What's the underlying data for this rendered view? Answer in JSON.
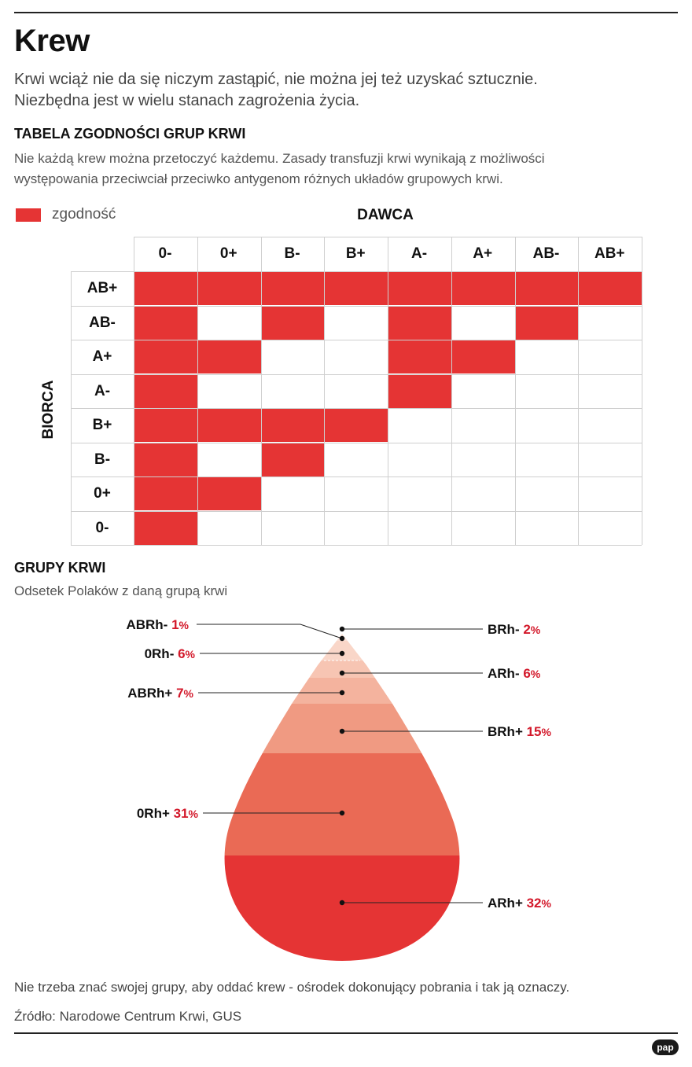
{
  "header": {
    "title": "Krew",
    "lead_lines": [
      "Krwi wciąż nie da się niczym zastąpić, nie można jej też uzyskać sztucznie.",
      "Niezbędna jest w wielu stanach zagrożenia życia."
    ]
  },
  "compat": {
    "heading": "TABELA ZGODNOŚCI GRUP KRWI",
    "desc_lines": [
      "Nie każdą krew można przetoczyć każdemu. Zasady transfuzji krwi wynikają z możliwości",
      "występowania przeciwciał przeciwko antygenom różnych układów grupowych krwi."
    ],
    "legend_label": "zgodność",
    "legend_color": "#e53434",
    "donor_axis": "DAWCA",
    "recipient_axis": "BIORCA"
  },
  "groups": {
    "heading": "GRUPY KRWI",
    "subheading": "Odsetek Polaków z daną grupą krwi"
  },
  "chart_data": [
    {
      "type": "heatmap",
      "title": "TABELA ZGODNOŚCI GRUP KRWI",
      "xlabel": "DAWCA",
      "ylabel": "BIORCA",
      "columns": [
        "0-",
        "0+",
        "B-",
        "B+",
        "A-",
        "A+",
        "AB-",
        "AB+"
      ],
      "rows": [
        "AB+",
        "AB-",
        "A+",
        "A-",
        "B+",
        "B-",
        "0+",
        "0-"
      ],
      "values": [
        [
          1,
          1,
          1,
          1,
          1,
          1,
          1,
          1
        ],
        [
          1,
          0,
          1,
          0,
          1,
          0,
          1,
          0
        ],
        [
          1,
          1,
          0,
          0,
          1,
          1,
          0,
          0
        ],
        [
          1,
          0,
          0,
          0,
          1,
          0,
          0,
          0
        ],
        [
          1,
          1,
          1,
          1,
          0,
          0,
          0,
          0
        ],
        [
          1,
          0,
          1,
          0,
          0,
          0,
          0,
          0
        ],
        [
          1,
          1,
          0,
          0,
          0,
          0,
          0,
          0
        ],
        [
          1,
          0,
          0,
          0,
          0,
          0,
          0,
          0
        ]
      ],
      "legend": "zgodność"
    },
    {
      "type": "area",
      "title": "GRUPY KRWI",
      "subtitle": "Odsetek Polaków z daną grupą krwi",
      "unit": "%",
      "layers_top_to_bottom": [
        {
          "name": "ABRh-",
          "value": 1,
          "side": "left",
          "color": "#fbe3d9"
        },
        {
          "name": "BRh-",
          "value": 2,
          "side": "right",
          "color": "#f9d6c8"
        },
        {
          "name": "0Rh-",
          "value": 6,
          "side": "left",
          "color": "#f7c5b3"
        },
        {
          "name": "ARh-",
          "value": 6,
          "side": "right",
          "color": "#f4b39e"
        },
        {
          "name": "ABRh+",
          "value": 7,
          "side": "left",
          "color": "#f09a82"
        },
        {
          "name": "BRh+",
          "value": 15,
          "side": "right",
          "color": "#ea6a55"
        },
        {
          "name": "0Rh+",
          "value": 31,
          "side": "left",
          "color": "#e53434"
        },
        {
          "name": "ARh+",
          "value": 32,
          "side": "right",
          "color": "#c10d20"
        }
      ],
      "value_color": "#d3182a"
    }
  ],
  "footer": {
    "note": "Nie trzeba znać swojej grupy,  aby oddać krew - ośrodek dokonujący pobrania i tak ją oznaczy.",
    "source": "Źródło: Narodowe Centrum Krwi, GUS",
    "logo": "pap"
  }
}
